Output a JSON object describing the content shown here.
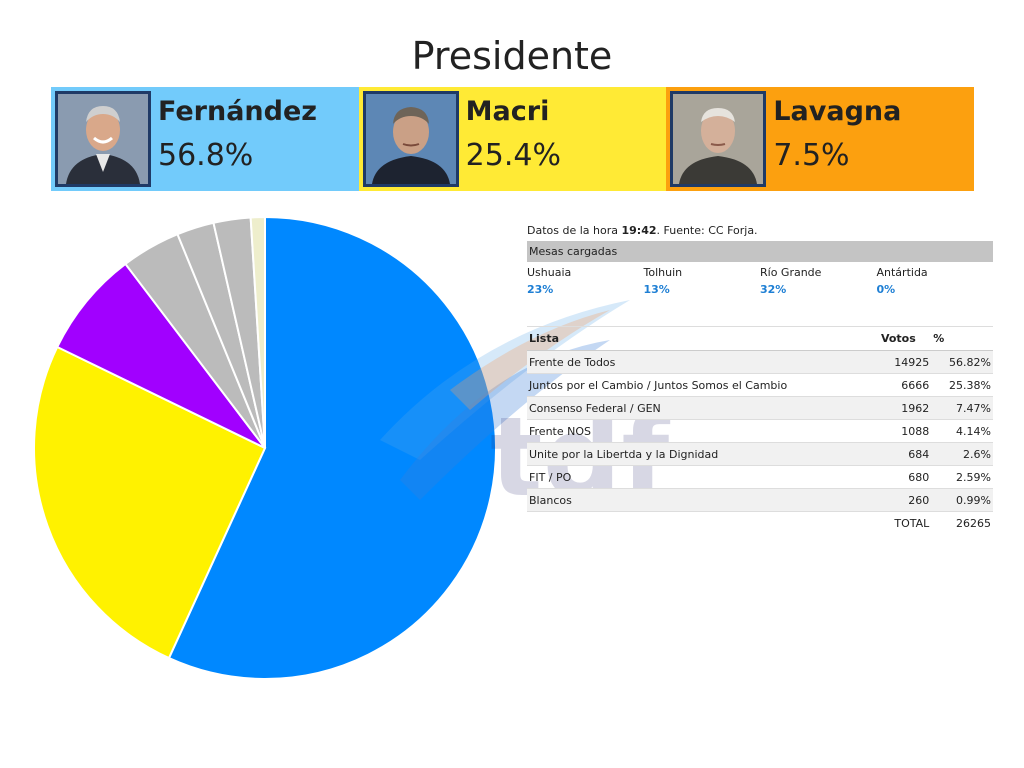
{
  "header": {
    "title": "Presidente"
  },
  "candidates": [
    {
      "name": "Fernández",
      "pct": "56.8%",
      "color": "#72cbfb"
    },
    {
      "name": "Macri",
      "pct": "25.4%",
      "color": "#ffea35"
    },
    {
      "name": "Lavagna",
      "pct": "7.5%",
      "color": "#fca00f"
    }
  ],
  "watermark": {
    "text": "tdf"
  },
  "info": {
    "stamp_prefix": "Datos de la hora ",
    "stamp_time": "19:42",
    "stamp_suffix": ". Fuente: CC Forja.",
    "mesas_label": "Mesas cargadas",
    "regions": [
      {
        "name": "Ushuaia",
        "value": "23%"
      },
      {
        "name": "Tolhuin",
        "value": "13%"
      },
      {
        "name": "Río Grande",
        "value": "32%"
      },
      {
        "name": "Antártida",
        "value": "0%"
      }
    ],
    "accent_color": "#1e7fd4"
  },
  "table": {
    "headers": {
      "lista": "Lista",
      "votos": "Votos",
      "pct": "%"
    },
    "rows": [
      {
        "lista": "Frente de Todos",
        "votos": "14925",
        "pct": "56.82%"
      },
      {
        "lista": "Juntos por el Cambio / Juntos Somos el Cambio",
        "votos": "6666",
        "pct": "25.38%"
      },
      {
        "lista": "Consenso Federal / GEN",
        "votos": "1962",
        "pct": "7.47%"
      },
      {
        "lista": "Frente NOS",
        "votos": "1088",
        "pct": "4.14%"
      },
      {
        "lista": "Unite por la Libertda y la Dignidad",
        "votos": "684",
        "pct": "2.6%"
      },
      {
        "lista": "FIT / PO",
        "votos": "680",
        "pct": "2.59%"
      },
      {
        "lista": "Blancos",
        "votos": "260",
        "pct": "0.99%"
      }
    ],
    "total_label": "TOTAL",
    "total_value": "26265"
  },
  "chart_data": {
    "type": "pie",
    "categories": [
      "Frente de Todos",
      "Juntos por el Cambio / Juntos Somos el Cambio",
      "Consenso Federal / GEN",
      "Frente NOS",
      "Unite por la Libertda y la Dignidad",
      "FIT / PO",
      "Blancos"
    ],
    "values": [
      14925,
      6666,
      1962,
      1088,
      684,
      680,
      260
    ],
    "colors": [
      "#0088ff",
      "#fff200",
      "#a100ff",
      "#bbbbbb",
      "#bbbbbb",
      "#bbbbbb",
      "#eeeecc"
    ],
    "start": "12 o'clock",
    "direction": "clockwise"
  }
}
